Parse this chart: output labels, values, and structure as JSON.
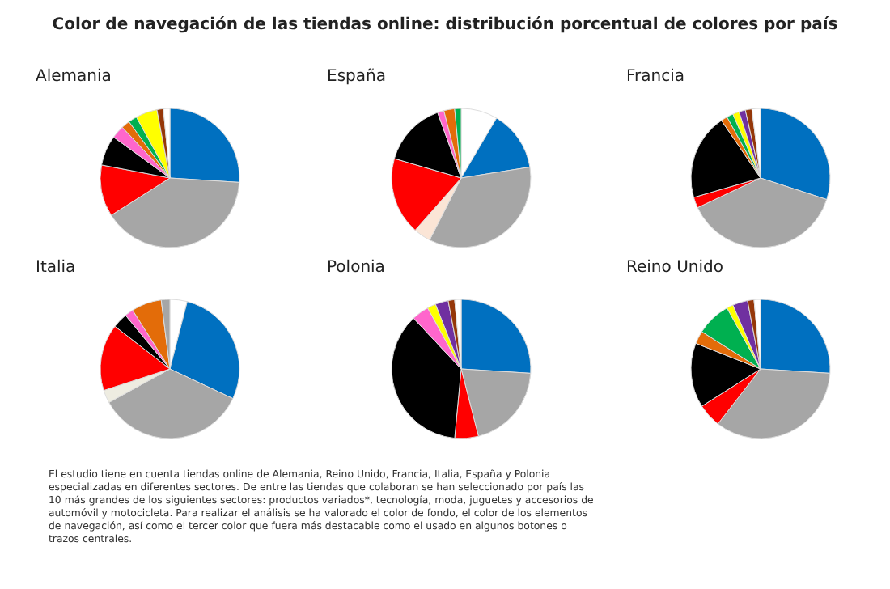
{
  "chart_data": [
    {
      "type": "other",
      "title": "Color de navegación de las tiendas online: distribución porcentual de colores por país"
    },
    {
      "type": "pie",
      "title": "Alemania",
      "categories": [
        null,
        null,
        null,
        null,
        null,
        null,
        null,
        null,
        null,
        null
      ],
      "values": [
        26,
        40,
        12,
        7,
        3,
        2,
        2,
        5,
        1.5,
        1.5
      ],
      "colors": [
        "#0070c0",
        "#a6a6a6",
        "#ff0000",
        "#000000",
        "#ff66cc",
        "#e36c09",
        "#00b050",
        "#ffff00",
        "#953709",
        "#ffffff"
      ]
    },
    {
      "type": "pie",
      "title": "España",
      "categories": [
        null,
        null,
        null,
        null,
        null,
        null,
        null,
        null,
        null
      ],
      "values": [
        8.5,
        14,
        35,
        4,
        18,
        15,
        1.5,
        2.5,
        1.5
      ],
      "colors": [
        "#ffffff",
        "#0070c0",
        "#a6a6a6",
        "#fbe5d6",
        "#ff0000",
        "#000000",
        "#ff66cc",
        "#e36c09",
        "#00b050"
      ]
    },
    {
      "type": "pie",
      "title": "Francia",
      "categories": [
        null,
        null,
        null,
        null,
        null,
        null,
        null,
        null,
        null,
        null
      ],
      "values": [
        30,
        38,
        2.5,
        20,
        1.5,
        1.5,
        1.5,
        1.5,
        1.5,
        2
      ],
      "colors": [
        "#0070c0",
        "#a6a6a6",
        "#ff0000",
        "#000000",
        "#e36c09",
        "#00b050",
        "#ffff00",
        "#7030a0",
        "#953709",
        "#ffffff"
      ]
    },
    {
      "type": "pie",
      "title": "Italia",
      "categories": [
        null,
        null,
        null,
        null,
        null,
        null,
        null,
        null,
        null
      ],
      "values": [
        4,
        28,
        35,
        3,
        15.5,
        3.5,
        2,
        7,
        2
      ],
      "colors": [
        "#ffffff",
        "#0070c0",
        "#a6a6a6",
        "#eeece1",
        "#ff0000",
        "#000000",
        "#ff66cc",
        "#e36c09",
        "#a6a6a6"
      ]
    },
    {
      "type": "pie",
      "title": "Polonia",
      "categories": [
        null,
        null,
        null,
        null,
        null,
        null,
        null,
        null,
        null
      ],
      "values": [
        26,
        20,
        5.5,
        36.5,
        4,
        2,
        3,
        1.5,
        1.5
      ],
      "colors": [
        "#0070c0",
        "#a6a6a6",
        "#ff0000",
        "#000000",
        "#ff66cc",
        "#ffff00",
        "#7030a0",
        "#953709",
        "#ffffff"
      ]
    },
    {
      "type": "pie",
      "title": "Reino Unido",
      "categories": [
        null,
        null,
        null,
        null,
        null,
        null,
        null,
        null,
        null,
        null
      ],
      "values": [
        26,
        34.5,
        5.5,
        15,
        3,
        8,
        1.5,
        3.5,
        1.5,
        1.5
      ],
      "colors": [
        "#0070c0",
        "#a6a6a6",
        "#ff0000",
        "#000000",
        "#e36c09",
        "#00b050",
        "#ffff00",
        "#7030a0",
        "#953709",
        "#ffffff"
      ]
    },
    {
      "type": "other",
      "annotations": [
        "El estudio tiene en cuenta tiendas online de Alemania, Reino Unido, Francia, Italia, España y Polonia especializadas en diferentes sectores. De entre las tiendas que colaboran se han seleccionado por país las 10 más grandes de los siguientes sectores: productos variados*, tecnología, moda, juguetes y accesorios de automóvil y motocicleta. Para realizar el análisis se ha valorado el color de fondo, el color de los elementos de navegación, así como el tercer color que fuera más destacable como el usado en algunos botones o trazos centrales."
      ]
    }
  ]
}
